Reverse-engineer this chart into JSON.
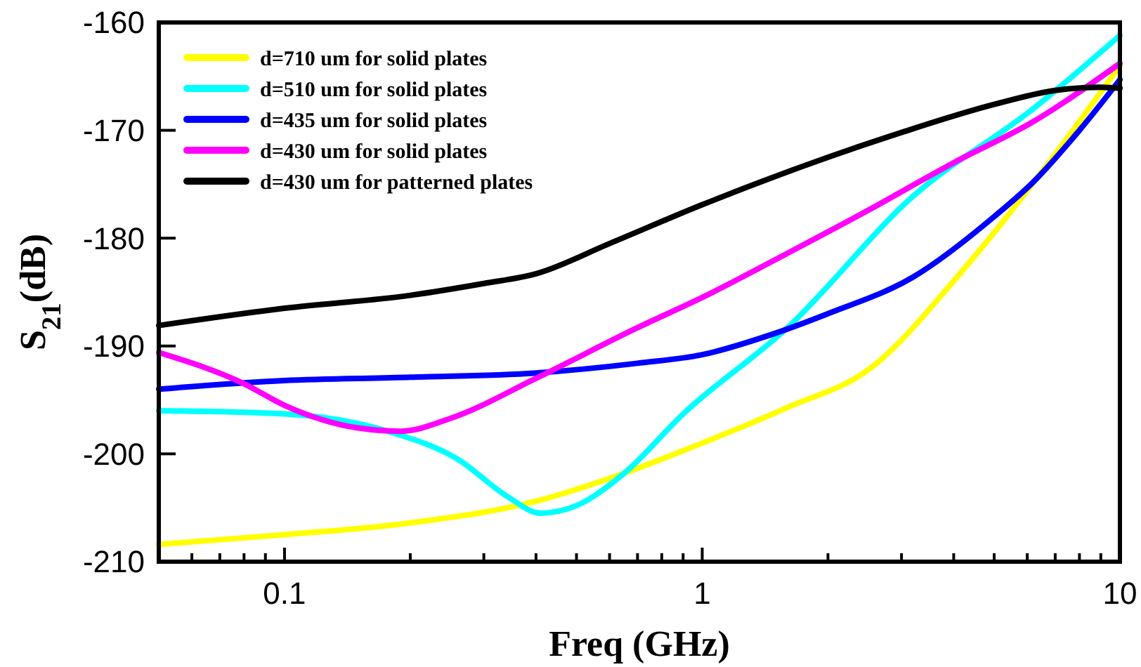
{
  "chart_data": {
    "type": "line",
    "xlabel": "Freq (GHz)",
    "ylabel": "S$_{21}$(dB)",
    "log": "x",
    "xlim": [
      0.05,
      10
    ],
    "ylim": [
      -210,
      -160
    ],
    "xticks": [
      {
        "value": 0.06,
        "label": null
      },
      {
        "value": 0.07,
        "label": null
      },
      {
        "value": 0.08,
        "label": null
      },
      {
        "value": 0.09,
        "label": null
      },
      {
        "value": 0.1,
        "label": "0.1"
      },
      {
        "value": 0.2,
        "label": null
      },
      {
        "value": 0.3,
        "label": null
      },
      {
        "value": 0.4,
        "label": null
      },
      {
        "value": 0.5,
        "label": null
      },
      {
        "value": 0.6,
        "label": null
      },
      {
        "value": 0.7,
        "label": null
      },
      {
        "value": 0.8,
        "label": null
      },
      {
        "value": 0.9,
        "label": null
      },
      1,
      {
        "value": 2,
        "label": null
      },
      {
        "value": 3,
        "label": null
      },
      {
        "value": 4,
        "label": null
      },
      {
        "value": 5,
        "label": null
      },
      {
        "value": 6,
        "label": null
      },
      {
        "value": 7,
        "label": null
      },
      {
        "value": 8,
        "label": null
      },
      {
        "value": 9,
        "label": null
      },
      10
    ],
    "yticks": [
      -210,
      -200,
      -190,
      -180,
      -170,
      -160
    ],
    "grid": false,
    "legend": "top left",
    "marker": "none",
    "line_style": "solid",
    "series": [
      {
        "name": "d=710 um for solid plates",
        "color": "#ffff00",
        "x": [
          0.05,
          0.1,
          0.2,
          0.4,
          0.65,
          1,
          1.6,
          2.5,
          4.2,
          7,
          10
        ],
        "values": [
          -208.4,
          -207.5,
          -206.4,
          -204.4,
          -201.8,
          -199,
          -195.7,
          -192.2,
          -183,
          -172.2,
          -164
        ]
      },
      {
        "name": "d=510 um for solid plates",
        "color": "#00ffff",
        "x": [
          0.05,
          0.1,
          0.18,
          0.26,
          0.34,
          0.41,
          0.5,
          0.65,
          0.9,
          1.6,
          3.2,
          6.2,
          10
        ],
        "values": [
          -196,
          -196.3,
          -198,
          -200.5,
          -203.9,
          -205.5,
          -204.8,
          -201.8,
          -196.3,
          -188.3,
          -176.1,
          -168,
          -161.2
        ]
      },
      {
        "name": "d=435 um for solid plates",
        "color": "#0000ff",
        "x": [
          0.05,
          0.1,
          0.2,
          0.4,
          0.7,
          1,
          1.5,
          2,
          3.2,
          5,
          6.2,
          8,
          10
        ],
        "values": [
          -194,
          -193.2,
          -192.9,
          -192.5,
          -191.6,
          -190.8,
          -188.8,
          -187,
          -183.6,
          -178,
          -174.8,
          -170,
          -165.3
        ]
      },
      {
        "name": "d=430 um for solid plates",
        "color": "#ff00ff",
        "x": [
          0.05,
          0.08,
          0.1,
          0.15,
          0.19,
          0.25,
          0.4,
          0.7,
          1,
          1.6,
          2.5,
          4,
          6.2,
          10
        ],
        "values": [
          -190.6,
          -193.5,
          -195.5,
          -197.6,
          -197.9,
          -196.7,
          -193,
          -188.3,
          -185.5,
          -181.4,
          -177.4,
          -173,
          -169.2,
          -163.8
        ]
      },
      {
        "name": "d=430 um for patterned plates",
        "color": "#000000",
        "x": [
          0.05,
          0.1,
          0.2,
          0.3,
          0.4,
          0.6,
          1,
          2,
          3,
          5,
          7,
          9,
          10
        ],
        "values": [
          -188.1,
          -186.5,
          -185.3,
          -184.2,
          -183.3,
          -180.5,
          -176.9,
          -172.5,
          -170.2,
          -167.6,
          -166.3,
          -166,
          -166.1
        ]
      }
    ]
  }
}
